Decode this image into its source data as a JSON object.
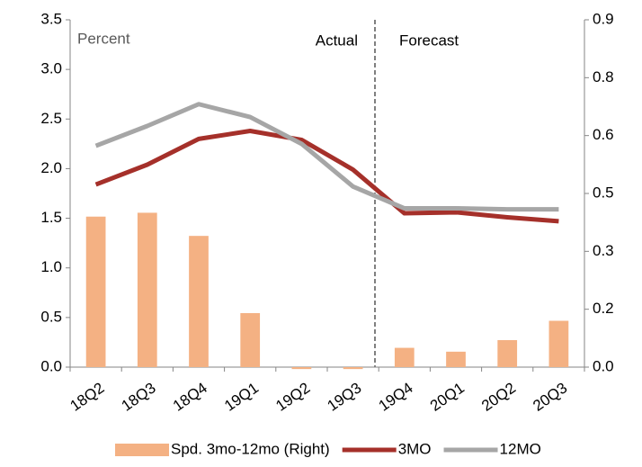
{
  "chart_data": {
    "type": "combo",
    "annotations": [
      "Percent",
      "Actual",
      "Forecast"
    ],
    "categories": [
      "18Q2",
      "18Q3",
      "18Q4",
      "19Q1",
      "19Q2",
      "19Q3",
      "19Q4",
      "20Q1",
      "20Q2",
      "20Q3"
    ],
    "series": [
      {
        "name": "Spd. 3mo-12mo (Right)",
        "type": "bar",
        "axis": "y2",
        "color": "#f4b183",
        "values": [
          0.39,
          0.4,
          0.34,
          0.14,
          -0.005,
          -0.005,
          0.05,
          0.04,
          0.07,
          0.12
        ]
      },
      {
        "name": "3MO",
        "type": "line",
        "axis": "y",
        "color": "#a5302a",
        "values": [
          1.84,
          2.04,
          2.3,
          2.38,
          2.29,
          1.99,
          1.55,
          1.56,
          1.51,
          1.47
        ]
      },
      {
        "name": "12MO",
        "type": "line",
        "axis": "y",
        "color": "#a6a6a6",
        "values": [
          2.23,
          2.43,
          2.65,
          2.52,
          2.25,
          1.82,
          1.6,
          1.6,
          1.59,
          1.59
        ]
      }
    ],
    "ylim": [
      0,
      3.5
    ],
    "yticks": [
      {
        "value": 0,
        "label": "0.0"
      },
      0.5,
      {
        "value": 1,
        "label": "1.0"
      },
      1.5,
      {
        "value": 2,
        "label": "2.0"
      },
      2.5,
      {
        "value": 3,
        "label": "3.0"
      },
      3.5
    ],
    "y2lim": [
      0,
      0.9
    ],
    "y2ticks": [
      {
        "value": 0,
        "label": "0.0"
      },
      {
        "value": 0.15,
        "label": "0.2"
      },
      0.3,
      {
        "value": 0.45,
        "label": "0.5"
      },
      0.6,
      {
        "value": 0.75,
        "label": "0.8"
      },
      0.9
    ],
    "legend": "bottom"
  }
}
